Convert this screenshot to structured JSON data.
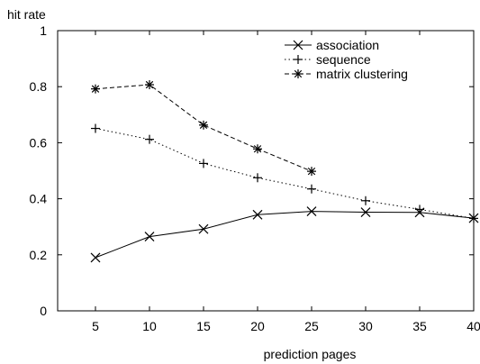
{
  "chart_data": {
    "type": "line",
    "xlabel": "prediction pages",
    "ylabel": "hit rate",
    "xlim": [
      0,
      40
    ],
    "ylim": [
      0,
      1
    ],
    "xticks": [
      5,
      10,
      15,
      20,
      25,
      30,
      35,
      40
    ],
    "yticks": [
      0,
      0.2,
      0.4,
      0.6,
      0.8,
      1
    ],
    "ytick_labels": [
      "0",
      "0.2",
      "0.4",
      "0.6",
      "0.8",
      "1"
    ],
    "grid": false,
    "legend_position": "top-right",
    "series": [
      {
        "name": "association",
        "marker": "x",
        "line_style": "solid",
        "x": [
          5,
          10,
          15,
          20,
          25,
          30,
          35,
          40
        ],
        "y": [
          0.19,
          0.265,
          0.292,
          0.343,
          0.355,
          0.352,
          0.351,
          0.331
        ]
      },
      {
        "name": "sequence",
        "marker": "plus",
        "line_style": "dotted",
        "x": [
          5,
          10,
          15,
          20,
          25,
          30,
          35,
          40
        ],
        "y": [
          0.651,
          0.612,
          0.526,
          0.475,
          0.435,
          0.393,
          0.362,
          0.33
        ]
      },
      {
        "name": "matrix clustering",
        "marker": "star",
        "line_style": "dashed",
        "x": [
          5,
          10,
          15,
          20,
          25
        ],
        "y": [
          0.792,
          0.807,
          0.663,
          0.578,
          0.498
        ]
      }
    ]
  }
}
